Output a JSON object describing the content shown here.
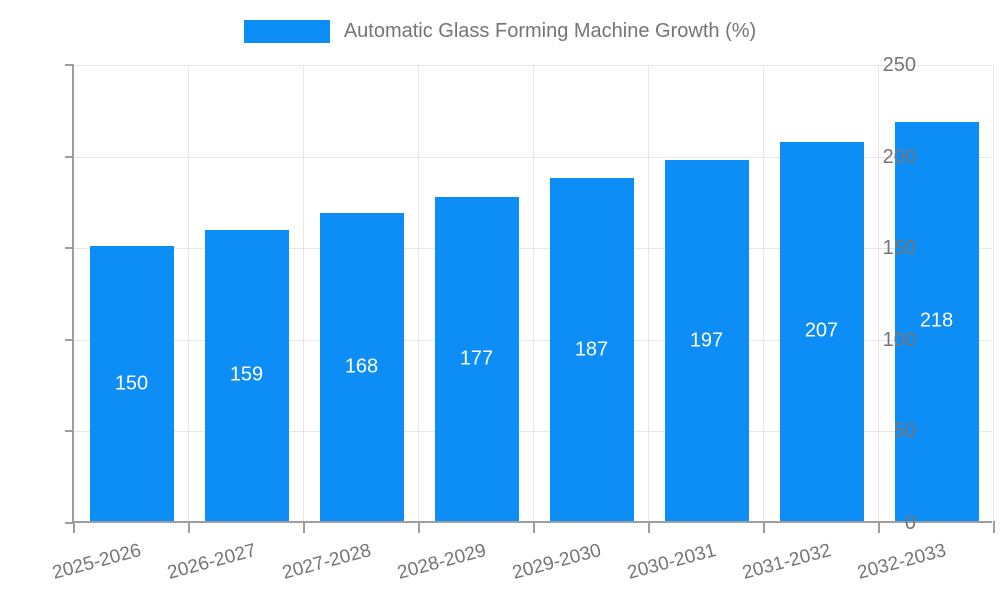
{
  "legend": {
    "label": "Automatic Glass Forming Machine Growth (%)"
  },
  "colors": {
    "bar": "#0d8ef7",
    "axis_line": "#9e9e9e",
    "grid_line": "#e6e6e6",
    "tick_text": "#757575",
    "value_text": "#ffffff"
  },
  "chart_data": {
    "type": "bar",
    "title": "Automatic Glass Forming Machine Growth (%)",
    "categories": [
      "2025-2026",
      "2026-2027",
      "2027-2028",
      "2028-2029",
      "2029-2030",
      "2030-2031",
      "2031-2032",
      "2032-2033"
    ],
    "values": [
      150,
      159,
      168,
      177,
      187,
      197,
      207,
      218
    ],
    "xlabel": "",
    "ylabel": "",
    "ylim": [
      0,
      250
    ],
    "yticks": [
      0,
      50,
      100,
      150,
      200,
      250
    ],
    "grid": true,
    "legend_position": "top",
    "bar_label_position": "center-inside",
    "xlabel_rotation_deg": -15
  }
}
